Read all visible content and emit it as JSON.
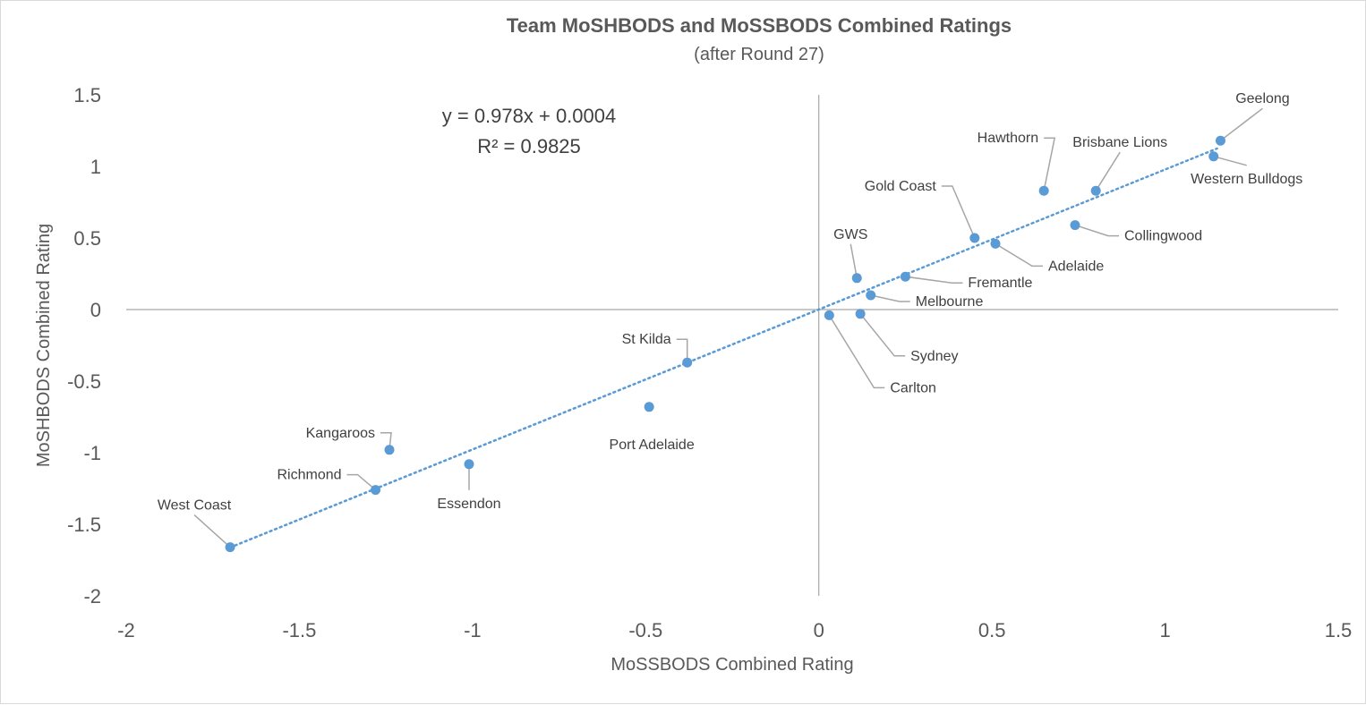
{
  "chart_data": {
    "type": "scatter",
    "title": "Team MoSHBODS and MoSSBODS Combined Ratings",
    "subtitle": "(after Round 27)",
    "xlabel": "MoSSBODS Combined Rating",
    "ylabel": "MoSHBODS Combined Rating",
    "xlim": [
      -2,
      1.5
    ],
    "ylim": [
      -2,
      1.5
    ],
    "x_ticks": [
      "-2",
      "-1.5",
      "-1",
      "-0.5",
      "0",
      "0.5",
      "1",
      "1.5"
    ],
    "y_ticks": [
      "1.5",
      "1",
      "0.5",
      "0",
      "-0.5",
      "-1",
      "-1.5",
      "-2"
    ],
    "grid": false,
    "trendline": {
      "slope": 0.978,
      "intercept": 0.0004,
      "x_range": [
        -1.7,
        1.15
      ],
      "equation": "y = 0.978x + 0.0004",
      "r_squared": "R² = 0.9825"
    },
    "points": [
      {
        "label": "Geelong",
        "x": 1.16,
        "y": 1.18
      },
      {
        "label": "Western Bulldogs",
        "x": 1.14,
        "y": 1.07
      },
      {
        "label": "Hawthorn",
        "x": 0.65,
        "y": 0.83
      },
      {
        "label": "Brisbane Lions",
        "x": 0.8,
        "y": 0.83
      },
      {
        "label": "Collingwood",
        "x": 0.74,
        "y": 0.59
      },
      {
        "label": "Gold Coast",
        "x": 0.45,
        "y": 0.5
      },
      {
        "label": "Adelaide",
        "x": 0.51,
        "y": 0.46
      },
      {
        "label": "GWS",
        "x": 0.11,
        "y": 0.22
      },
      {
        "label": "Fremantle",
        "x": 0.25,
        "y": 0.23
      },
      {
        "label": "Melbourne",
        "x": 0.15,
        "y": 0.1
      },
      {
        "label": "Sydney",
        "x": 0.12,
        "y": -0.03
      },
      {
        "label": "Carlton",
        "x": 0.03,
        "y": -0.04
      },
      {
        "label": "St Kilda",
        "x": -0.38,
        "y": -0.37
      },
      {
        "label": "Port Adelaide",
        "x": -0.49,
        "y": -0.68
      },
      {
        "label": "Kangaroos",
        "x": -1.24,
        "y": -0.98
      },
      {
        "label": "Essendon",
        "x": -1.01,
        "y": -1.08
      },
      {
        "label": "Richmond",
        "x": -1.28,
        "y": -1.26
      },
      {
        "label": "West Coast",
        "x": -1.7,
        "y": -1.66
      }
    ]
  }
}
